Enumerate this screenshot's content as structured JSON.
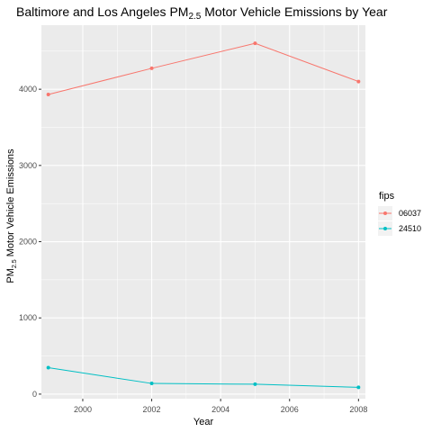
{
  "chart_data": {
    "type": "line",
    "title": {
      "prefix": "Baltimore and Los Angeles PM",
      "subscript": "2.5",
      "suffix": " Motor Vehicle Emissions by Year"
    },
    "xlabel": "Year",
    "ylabel": {
      "prefix": "PM",
      "subscript": "2.5",
      "suffix": " Motor Vehicle Emissions"
    },
    "x": [
      1999,
      2002,
      2005,
      2008
    ],
    "xlim": [
      1998.8,
      2008.2
    ],
    "ylim": [
      -60,
      4840
    ],
    "x_ticks": [
      2000,
      2002,
      2004,
      2006,
      2008
    ],
    "y_ticks": [
      0,
      1000,
      2000,
      3000,
      4000
    ],
    "grid": true,
    "legend": {
      "title": "fips",
      "position": "right"
    },
    "series": [
      {
        "name": "06037",
        "color": "#F8766D",
        "values": [
          3931,
          4274,
          4602,
          4101
        ]
      },
      {
        "name": "24510",
        "color": "#00BFC4",
        "values": [
          347,
          140,
          130,
          89
        ]
      }
    ]
  }
}
